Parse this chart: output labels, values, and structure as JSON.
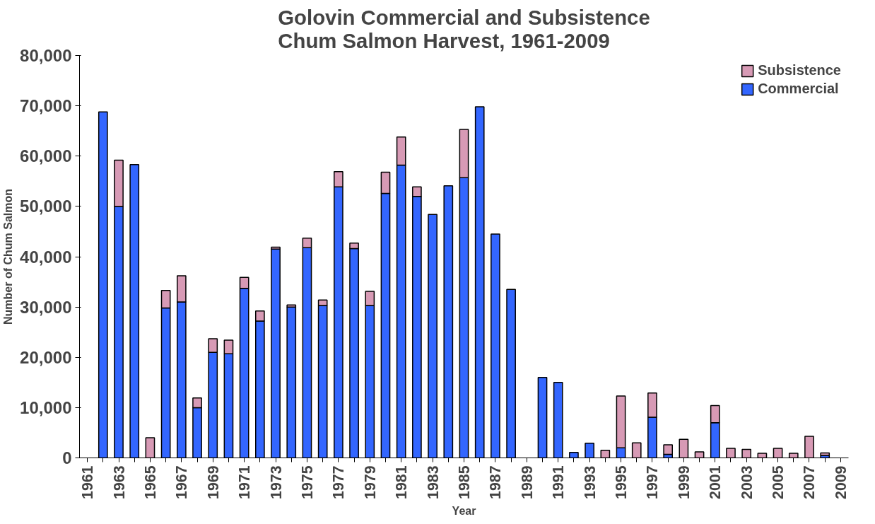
{
  "chart_data": {
    "type": "bar",
    "stacked": true,
    "title": "Golovin Commercial and Subsistence\nChum Salmon Harvest, 1961-2009",
    "xlabel": "Year",
    "ylabel": "Number of Chum Salmon",
    "categories": [
      "1961",
      null,
      "1963",
      null,
      "1965",
      null,
      "1967",
      null,
      "1969",
      null,
      "1971",
      null,
      "1973",
      null,
      "1975",
      null,
      "1977",
      null,
      "1979",
      null,
      "1981",
      null,
      "1983",
      null,
      "1985",
      null,
      "1987",
      null,
      "1989",
      null,
      "1991",
      null,
      "1993",
      null,
      "1995",
      null,
      "1997",
      null,
      "1999",
      null,
      "2001",
      null,
      "2003",
      null,
      "2005",
      null,
      "2007",
      null,
      "2009"
    ],
    "series": [
      {
        "name": "Commercial",
        "color": "#3366ff",
        "values": [
          0,
          68800,
          50000,
          58300,
          0,
          29800,
          31000,
          10000,
          21000,
          20700,
          33700,
          27200,
          41500,
          30000,
          41800,
          30300,
          53900,
          41600,
          30300,
          52600,
          58200,
          52000,
          48400,
          54100,
          55700,
          69800,
          44500,
          33500,
          0,
          16000,
          15000,
          1100,
          2900,
          0,
          2000,
          0,
          8100,
          700,
          0,
          null,
          7000,
          0,
          0,
          0,
          0,
          0,
          0,
          500,
          0
        ]
      },
      {
        "name": "Subsistence",
        "color": "#d79ab5",
        "values": [
          0,
          0,
          9200,
          0,
          4000,
          3500,
          5200,
          1900,
          2700,
          2700,
          2200,
          2000,
          400,
          400,
          1900,
          1100,
          3000,
          1100,
          2800,
          4200,
          5600,
          1900,
          0,
          0,
          9600,
          0,
          0,
          0,
          0,
          0,
          0,
          0,
          0,
          1500,
          10300,
          3000,
          4800,
          1900,
          3700,
          1200,
          3400,
          1900,
          1700,
          900,
          1900,
          900,
          4300,
          500,
          0
        ]
      }
    ],
    "ylim": [
      0,
      80000
    ],
    "yticks": [
      0,
      {
        "value": 10000,
        "label": "10,000"
      },
      {
        "value": 20000,
        "label": "20,000"
      },
      {
        "value": 30000,
        "label": "30,000"
      },
      {
        "value": 40000,
        "label": "40,000"
      },
      {
        "value": 50000,
        "label": "50,000"
      },
      {
        "value": 60000,
        "label": "60,000"
      },
      {
        "value": 70000,
        "label": "70,000"
      },
      {
        "value": 80000,
        "label": "80,000"
      }
    ],
    "grid": false,
    "legend": "top right"
  }
}
